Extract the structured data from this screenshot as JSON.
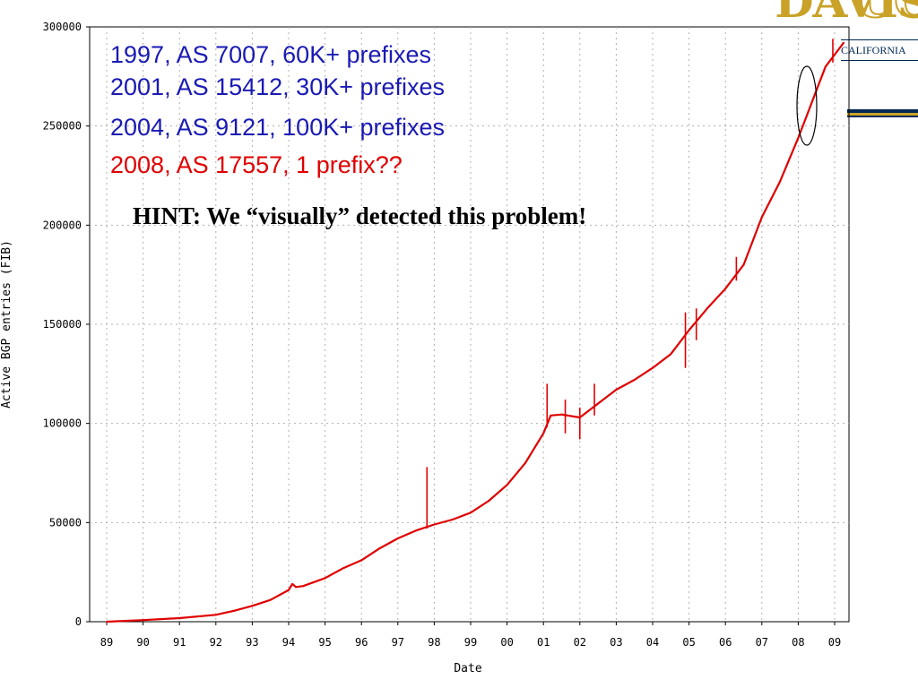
{
  "logo": {
    "uc": "UC",
    "davis": "DAVIS",
    "sub": "CALIFORNIA",
    "colors": {
      "gold": "#c9a227",
      "navy": "#002855"
    }
  },
  "annotations": [
    {
      "text": "1997, AS 7007, 60K+ prefixes",
      "color": "#1a1ab4"
    },
    {
      "text": "2001, AS 15412, 30K+ prefixes",
      "color": "#1a1ab4"
    },
    {
      "text": "2004, AS 9121, 100K+ prefixes",
      "color": "#1a1ab4"
    },
    {
      "text": "2008, AS 17557, 1 prefix??",
      "color": "#e00000"
    }
  ],
  "hint": "HINT: We “visually” detected this problem!",
  "chart_data": {
    "type": "line",
    "xlabel": "Date",
    "ylabel": "Active BGP entries (FIB)",
    "x_ticks": [
      "89",
      "90",
      "91",
      "92",
      "93",
      "94",
      "95",
      "96",
      "97",
      "98",
      "99",
      "00",
      "01",
      "02",
      "03",
      "04",
      "05",
      "06",
      "07",
      "08",
      "09"
    ],
    "y_ticks": [
      0,
      50000,
      100000,
      150000,
      200000,
      250000,
      300000
    ],
    "xlim": [
      1989,
      2009.3
    ],
    "ylim": [
      0,
      300000
    ],
    "grid": true,
    "line_color": "#e00000",
    "series": [
      {
        "x": [
          1989.0,
          1990.0,
          1991.0,
          1992.0,
          1992.5,
          1993.0,
          1993.5,
          1994.0,
          1994.1,
          1994.2,
          1994.4,
          1995.0,
          1995.5,
          1996.0,
          1996.5,
          1997.0,
          1997.5,
          1998.0,
          1998.5,
          1999.0,
          1999.5,
          2000.0,
          2000.5,
          2001.0,
          2001.2,
          2001.5,
          2002.0,
          2002.5,
          2003.0,
          2003.5,
          2004.0,
          2004.5,
          2005.0,
          2005.5,
          2006.0,
          2006.5,
          2007.0,
          2007.5,
          2008.0,
          2008.25,
          2008.5,
          2008.75,
          2009.0,
          2009.25
        ],
        "y": [
          0,
          800,
          1800,
          3500,
          5500,
          8000,
          11000,
          16000,
          19000,
          17500,
          18000,
          22000,
          27000,
          31000,
          37000,
          42000,
          46000,
          49000,
          51500,
          55000,
          61000,
          69000,
          80000,
          95000,
          104000,
          104500,
          103000,
          110000,
          117000,
          122000,
          128000,
          135000,
          147000,
          158000,
          168000,
          180000,
          204000,
          222000,
          244000,
          256000,
          268000,
          280000,
          286000,
          292000
        ]
      }
    ],
    "spikes": [
      {
        "x": 1997.8,
        "from": 47000,
        "to": 78000
      },
      {
        "x": 2001.1,
        "from": 98000,
        "to": 120000
      },
      {
        "x": 2001.6,
        "from": 95000,
        "to": 112000
      },
      {
        "x": 2002.0,
        "from": 92000,
        "to": 108000
      },
      {
        "x": 2002.4,
        "from": 104000,
        "to": 120000
      },
      {
        "x": 2004.9,
        "from": 128000,
        "to": 156000
      },
      {
        "x": 2005.2,
        "from": 142000,
        "to": 158000
      },
      {
        "x": 2006.3,
        "from": 172000,
        "to": 184000
      },
      {
        "x": 2008.95,
        "from": 282000,
        "to": 294000
      }
    ]
  }
}
